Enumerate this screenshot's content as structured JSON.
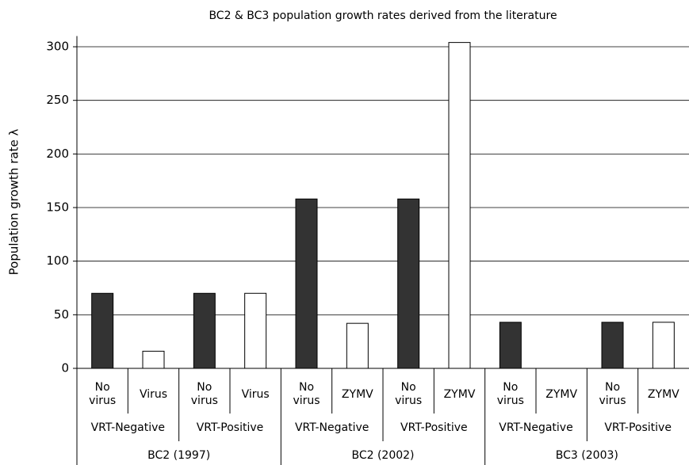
{
  "chart_data": {
    "type": "bar",
    "title": "BC2 & BC3 population growth rates derived from the literature",
    "y_label": "Population growth rate λ",
    "categories": [
      "No virus",
      "Virus",
      "No virus",
      "Virus",
      "No virus",
      "ZYMV",
      "No virus",
      "ZYMV",
      "No virus",
      "ZYMV",
      "No virus",
      "ZYMV"
    ],
    "subgroups": [
      "VRT-Negative",
      "VRT-Positive",
      "VRT-Negative",
      "VRT-Positive",
      "VRT-Negative",
      "VRT-Positive"
    ],
    "groups": [
      "BC2 (1997)",
      "BC2 (2002)",
      "BC3 (2003)"
    ],
    "values": [
      70,
      16,
      70,
      70,
      158,
      42,
      158,
      304,
      43,
      0,
      43,
      43
    ],
    "colors": [
      "#333333",
      "#ffffff",
      "#333333",
      "#ffffff",
      "#333333",
      "#ffffff",
      "#333333",
      "#ffffff",
      "#333333",
      "#ffffff",
      "#333333",
      "#ffffff"
    ],
    "ylim": [
      0,
      310
    ],
    "yticks": [
      0,
      50,
      100,
      150,
      200,
      250,
      300
    ],
    "grid": true
  }
}
